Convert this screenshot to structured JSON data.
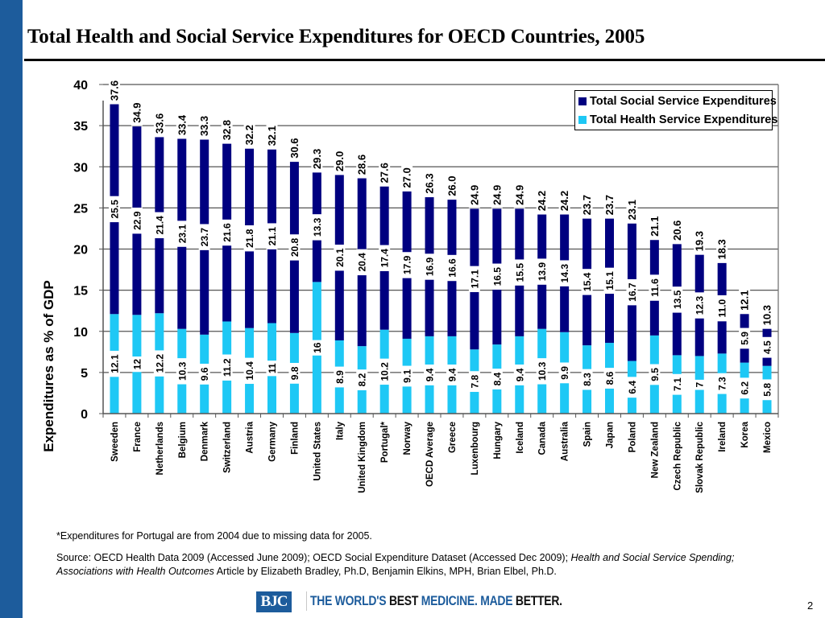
{
  "slide": {
    "title": "Total Health and Social Service Expenditures for OECD Countries, 2005",
    "footnote": "*Expenditures for Portugal are from 2004 due to missing data for 2005.",
    "source_prefix": "Source:  OECD Health Data 2009 (Accessed June 2009); OECD Social Expenditure Dataset (Accessed Dec 2009); ",
    "source_italic": "Health and Social Service Spending; Associations with Health Outcomes",
    "source_suffix": " Article by Elizabeth Bradley, Ph.D, Benjamin Elkins, MPH, Brian Elbel, Ph.D.",
    "logo_text": "BJC",
    "tagline": {
      "part1": "THE WORLD'S ",
      "part2": "BEST ",
      "part3": "MEDICINE. MADE ",
      "part4": "BETTER."
    },
    "page_number": "2"
  },
  "colors": {
    "social": "#000080",
    "health": "#1ec8f5",
    "brand_blue": "#1d5c9c"
  },
  "chart_data": {
    "type": "bar",
    "stacked": true,
    "title": "Total Health and Social Service Expenditures for OECD Countries, 2005",
    "xlabel": "",
    "ylabel": "Expenditures as % of GDP",
    "ylim": [
      0,
      40
    ],
    "yticks": [
      0,
      5,
      10,
      15,
      20,
      25,
      30,
      35,
      40
    ],
    "grid": true,
    "legend_position": "top-right",
    "categories": [
      "Sweeden",
      "France",
      "Netherlands",
      "Belgium",
      "Denmark",
      "Switzerland",
      "Austria",
      "Germany",
      "Finland",
      "United States",
      "Italy",
      "United Kingdom",
      "Portugal*",
      "Norway",
      "OECD Average",
      "Greece",
      "Luxenbourg",
      "Hungary",
      "Iceland",
      "Canada",
      "Australia",
      "Spain",
      "Japan",
      "Poland",
      "New Zealand",
      "Czech Republic",
      "Slovak Republic",
      "Ireland",
      "Korea",
      "Mexico"
    ],
    "series": [
      {
        "name": "Total Health Service Expenditures",
        "values": [
          12.1,
          12,
          12.2,
          10.3,
          9.6,
          11.2,
          10.4,
          11,
          9.8,
          16,
          8.9,
          8.2,
          10.2,
          9.1,
          9.4,
          9.4,
          7.8,
          8.4,
          9.4,
          10.3,
          9.9,
          8.3,
          8.6,
          6.4,
          9.5,
          7.1,
          7,
          7.3,
          6.2,
          5.8
        ],
        "labels": [
          "12.1",
          "12",
          "12.2",
          "10.3",
          "9.6",
          "11.2",
          "10.4",
          "11",
          "9.8",
          "16",
          "8.9",
          "8.2",
          "10.2",
          "9.1",
          "9.4",
          "9.4",
          "7.8",
          "8.4",
          "9.4",
          "10.3",
          "9.9",
          "8.3",
          "8.6",
          "6.4",
          "9.5",
          "7.1",
          "7",
          "7.3",
          "6.2",
          "5.8"
        ]
      },
      {
        "name": "Total Social Service Expenditures",
        "values": [
          25.5,
          22.9,
          21.4,
          23.1,
          23.7,
          21.6,
          21.8,
          21.1,
          20.8,
          13.3,
          20.1,
          20.4,
          17.4,
          17.9,
          16.9,
          16.6,
          17.1,
          16.5,
          15.5,
          13.9,
          14.3,
          15.4,
          15.1,
          16.7,
          11.6,
          13.5,
          12.3,
          11.0,
          5.9,
          4.5
        ],
        "labels": [
          "25.5",
          "22.9",
          "21.4",
          "23.1",
          "23.7",
          "21.6",
          "21.8",
          "21.1",
          "20.8",
          "13.3",
          "20.1",
          "20.4",
          "17.4",
          "17.9",
          "16.9",
          "16.6",
          "17.1",
          "16.5",
          "15.5",
          "13.9",
          "14.3",
          "15.4",
          "15.1",
          "16.7",
          "11.6",
          "13.5",
          "12.3",
          "11.0",
          "5.9",
          "4.5"
        ]
      }
    ],
    "totals": [
      37.6,
      34.9,
      33.6,
      33.4,
      33.3,
      32.8,
      32.2,
      32.1,
      30.6,
      29.3,
      29.0,
      28.6,
      27.6,
      27.0,
      26.3,
      26.0,
      24.9,
      24.9,
      24.9,
      24.2,
      24.2,
      23.7,
      23.7,
      23.1,
      21.1,
      20.6,
      19.3,
      18.3,
      12.1,
      10.3
    ],
    "total_labels": [
      "37.6",
      "34.9",
      "33.6",
      "33.4",
      "33.3",
      "32.8",
      "32.2",
      "32.1",
      "30.6",
      "29.3",
      "29.0",
      "28.6",
      "27.6",
      "27.0",
      "26.3",
      "26.0",
      "24.9",
      "24.9",
      "24.9",
      "24.2",
      "24.2",
      "23.7",
      "23.7",
      "23.1",
      "21.1",
      "20.6",
      "19.3",
      "18.3",
      "12.1",
      "10.3"
    ],
    "legend": [
      "Total Social Service Expenditures",
      "Total Health Service Expenditures"
    ]
  }
}
